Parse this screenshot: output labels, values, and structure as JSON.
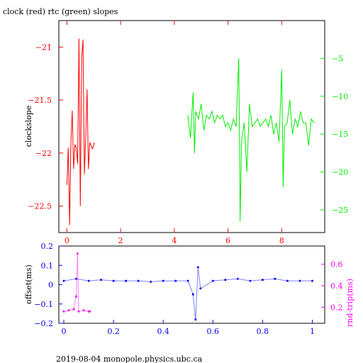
{
  "title": "clock (red) rtc (green) slopes",
  "footer": "2019-08-04 monopole.physics.ubc.ca",
  "colors": {
    "red": "#ff0000",
    "green": "#00ee00",
    "blue": "#0000ff",
    "magenta": "#ff00ff",
    "black": "#000000"
  },
  "chart_data": [
    {
      "type": "line",
      "title": "clock (red) rtc (green) slopes",
      "ylabel": "clockslope",
      "xlabel": "",
      "xlim": [
        -0.3,
        9.6
      ],
      "xticks": [
        0,
        2,
        4,
        6,
        8
      ],
      "ylim_left": [
        -22.75,
        -20.75
      ],
      "yticks_left": [
        -21,
        -21.5,
        -22,
        -22.5
      ],
      "ylim_right": [
        0,
        -28
      ],
      "yticks_right": [
        -5,
        -10,
        -15,
        -20,
        -25
      ],
      "series": [
        {
          "name": "clock (red)",
          "axis": "left",
          "color": "#ff0000",
          "x": [
            0.0,
            0.05,
            0.1,
            0.15,
            0.2,
            0.25,
            0.3,
            0.35,
            0.4,
            0.45,
            0.5,
            0.55,
            0.6,
            0.65,
            0.7,
            0.75,
            0.8,
            0.85,
            0.9,
            0.95,
            1.0,
            1.02
          ],
          "y": [
            -22.3,
            -21.95,
            -22.68,
            -21.9,
            -21.6,
            -22.15,
            -21.92,
            -21.95,
            -22.1,
            -20.92,
            -22.5,
            -21.1,
            -20.93,
            -22.2,
            -21.85,
            -21.4,
            -22.15,
            -21.9,
            -21.93,
            -21.96,
            -21.93,
            -21.9
          ]
        },
        {
          "name": "rtc (green)",
          "axis": "right",
          "color": "#00ee00",
          "x": [
            4.5,
            4.6,
            4.7,
            4.75,
            4.8,
            4.9,
            5.0,
            5.1,
            5.2,
            5.3,
            5.4,
            5.5,
            5.6,
            5.7,
            5.8,
            5.9,
            6.0,
            6.1,
            6.2,
            6.3,
            6.4,
            6.45,
            6.5,
            6.6,
            6.7,
            6.8,
            6.9,
            7.0,
            7.1,
            7.2,
            7.3,
            7.4,
            7.5,
            7.6,
            7.7,
            7.8,
            7.9,
            8.0,
            8.05,
            8.1,
            8.2,
            8.3,
            8.4,
            8.5,
            8.6,
            8.7,
            8.8,
            8.9,
            9.0,
            9.1,
            9.2
          ],
          "y": [
            -12.5,
            -15.5,
            -9.5,
            -17.5,
            -12.0,
            -13.0,
            -11.0,
            -14.5,
            -12.5,
            -13.0,
            -12.0,
            -13.5,
            -12.5,
            -13.0,
            -12.5,
            -14.0,
            -13.5,
            -14.5,
            -13.0,
            -14.0,
            -5.0,
            -26.5,
            -16.0,
            -13.5,
            -20.0,
            -11.0,
            -14.0,
            -13.5,
            -13.0,
            -14.0,
            -13.5,
            -13.0,
            -14.0,
            -12.5,
            -15.0,
            -13.5,
            -16.0,
            -6.5,
            -22.0,
            -14.0,
            -13.5,
            -10.5,
            -15.0,
            -13.0,
            -14.0,
            -12.0,
            -13.5,
            -13.5,
            -16.5,
            -13.0,
            -13.5
          ]
        }
      ]
    },
    {
      "type": "scatter",
      "ylabel": "offset(ms)",
      "ylabel_right": "rnd-trip(ms)",
      "xlim": [
        -0.02,
        1.05
      ],
      "xticks": [
        0,
        0.2,
        0.4,
        0.6,
        0.8,
        1
      ],
      "ylim_left": [
        -0.2,
        0.2
      ],
      "yticks_left": [
        0.2,
        0.1,
        0,
        -0.1,
        -0.2
      ],
      "ylim_right": [
        0.05,
        0.77
      ],
      "yticks_right": [
        0.6,
        0.4,
        0.2
      ],
      "series": [
        {
          "name": "offset",
          "axis": "left",
          "color": "#0000ff",
          "x": [
            0.0,
            0.05,
            0.1,
            0.15,
            0.2,
            0.25,
            0.3,
            0.35,
            0.4,
            0.45,
            0.5,
            0.52,
            0.53,
            0.54,
            0.55,
            0.6,
            0.65,
            0.7,
            0.75,
            0.8,
            0.85,
            0.9,
            0.95,
            1.0
          ],
          "y": [
            0.02,
            0.03,
            0.02,
            0.025,
            0.02,
            0.02,
            0.02,
            0.015,
            0.02,
            0.02,
            0.02,
            -0.05,
            -0.18,
            0.09,
            -0.02,
            0.02,
            0.025,
            0.03,
            0.02,
            0.025,
            0.03,
            0.02,
            0.02,
            0.02
          ]
        },
        {
          "name": "rnd-trip",
          "axis": "right",
          "color": "#ff00ff",
          "x": [
            0.0,
            0.02,
            0.04,
            0.05,
            0.055,
            0.06,
            0.08,
            0.1,
            0.105
          ],
          "y": [
            0.16,
            0.17,
            0.18,
            0.3,
            0.7,
            0.16,
            0.17,
            0.16,
            0.16
          ]
        }
      ]
    }
  ]
}
